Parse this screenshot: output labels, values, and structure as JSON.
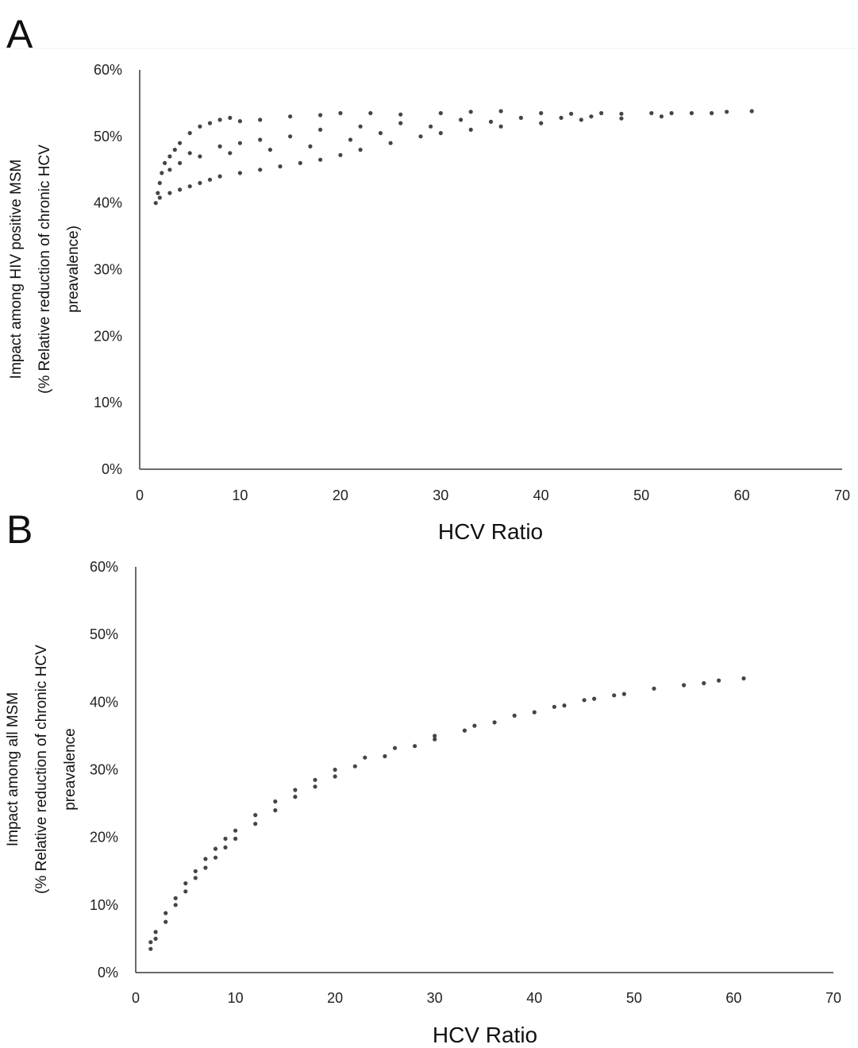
{
  "chart_data": [
    {
      "panel": "A",
      "type": "scatter",
      "title": "",
      "xlabel": "HCV Ratio",
      "ylabel_lines": [
        "Impact among HIV positive MSM",
        "(% Relative reduction of chronic HCV",
        "preavalence)"
      ],
      "xlim": [
        0,
        70
      ],
      "ylim": [
        0,
        60
      ],
      "x_ticks": [
        0,
        10,
        20,
        30,
        40,
        50,
        60,
        70
      ],
      "x_tick_labels": [
        "0",
        "10",
        "20",
        "30",
        "40",
        "50",
        "60",
        "70"
      ],
      "y_ticks": [
        0,
        10,
        20,
        30,
        40,
        50,
        60
      ],
      "y_tick_labels": [
        "0%",
        "10%",
        "20%",
        "30%",
        "40%",
        "50%",
        "60%"
      ],
      "grid": false,
      "point_color": "#454545",
      "series": [
        {
          "points": [
            [
              1.6,
              40.0
            ],
            [
              1.8,
              41.5
            ],
            [
              2.0,
              43.0
            ],
            [
              2.2,
              44.5
            ],
            [
              2.5,
              46.0
            ],
            [
              3.0,
              47.0
            ],
            [
              3.5,
              48.0
            ],
            [
              4.0,
              49.0
            ],
            [
              5.0,
              50.5
            ],
            [
              6.0,
              51.5
            ],
            [
              7.0,
              52.0
            ],
            [
              8.0,
              52.5
            ],
            [
              9.0,
              52.8
            ],
            [
              10.0,
              52.3
            ],
            [
              12.0,
              52.5
            ],
            [
              15.0,
              53.0
            ],
            [
              18.0,
              53.2
            ],
            [
              20.0,
              53.5
            ],
            [
              23.0,
              53.5
            ],
            [
              26.0,
              53.3
            ],
            [
              30.0,
              53.5
            ],
            [
              33.0,
              53.7
            ],
            [
              36.0,
              53.8
            ],
            [
              40.0,
              53.5
            ],
            [
              43.0,
              53.4
            ],
            [
              46.0,
              53.5
            ],
            [
              48.0,
              53.4
            ],
            [
              51.0,
              53.5
            ],
            [
              53.0,
              53.5
            ],
            [
              55.0,
              53.5
            ],
            [
              57.0,
              53.5
            ],
            [
              58.5,
              53.7
            ],
            [
              61.0,
              53.8
            ],
            [
              2.0,
              40.8
            ],
            [
              3.0,
              41.5
            ],
            [
              4.0,
              42.0
            ],
            [
              5.0,
              42.5
            ],
            [
              6.0,
              43.0
            ],
            [
              7.0,
              43.5
            ],
            [
              8.0,
              44.0
            ],
            [
              10.0,
              44.5
            ],
            [
              12.0,
              45.0
            ],
            [
              14.0,
              45.5
            ],
            [
              16.0,
              46.0
            ],
            [
              18.0,
              46.5
            ],
            [
              20.0,
              47.2
            ],
            [
              22.0,
              48.0
            ],
            [
              25.0,
              49.0
            ],
            [
              28.0,
              50.0
            ],
            [
              30.0,
              50.5
            ],
            [
              33.0,
              51.0
            ],
            [
              36.0,
              51.5
            ],
            [
              40.0,
              52.0
            ],
            [
              44.0,
              52.5
            ],
            [
              48.0,
              52.7
            ],
            [
              52.0,
              53.0
            ],
            [
              5.0,
              47.5
            ],
            [
              8.0,
              48.5
            ],
            [
              10.0,
              49.0
            ],
            [
              12.0,
              49.5
            ],
            [
              15.0,
              50.0
            ],
            [
              18.0,
              51.0
            ],
            [
              22.0,
              51.5
            ],
            [
              26.0,
              52.0
            ],
            [
              32.0,
              52.5
            ],
            [
              38.0,
              52.8
            ],
            [
              45.0,
              53.0
            ],
            [
              3.0,
              45.0
            ],
            [
              4.0,
              46.0
            ],
            [
              6.0,
              47.0
            ],
            [
              9.0,
              47.5
            ],
            [
              13.0,
              48.0
            ],
            [
              17.0,
              48.5
            ],
            [
              21.0,
              49.5
            ],
            [
              24.0,
              50.5
            ],
            [
              29.0,
              51.5
            ],
            [
              35.0,
              52.2
            ],
            [
              42.0,
              52.8
            ]
          ]
        }
      ]
    },
    {
      "panel": "B",
      "type": "scatter",
      "title": "",
      "xlabel": "HCV Ratio",
      "ylabel_lines": [
        "Impact among all MSM",
        "(% Relative reduction of chronic HCV",
        "preavalence"
      ],
      "xlim": [
        0,
        70
      ],
      "ylim": [
        0,
        60
      ],
      "x_ticks": [
        0,
        10,
        20,
        30,
        40,
        50,
        60,
        70
      ],
      "x_tick_labels": [
        "0",
        "10",
        "20",
        "30",
        "40",
        "50",
        "60",
        "70"
      ],
      "y_ticks": [
        0,
        10,
        20,
        30,
        40,
        50,
        60
      ],
      "y_tick_labels": [
        "0%",
        "10%",
        "20%",
        "30%",
        "40%",
        "50%",
        "60%"
      ],
      "grid": false,
      "point_color": "#454545",
      "series": [
        {
          "points": [
            [
              1.5,
              3.5
            ],
            [
              2.0,
              5.0
            ],
            [
              3.0,
              7.5
            ],
            [
              4.0,
              10.0
            ],
            [
              5.0,
              12.0
            ],
            [
              6.0,
              14.0
            ],
            [
              7.0,
              15.5
            ],
            [
              8.0,
              17.0
            ],
            [
              9.0,
              18.5
            ],
            [
              10.0,
              19.8
            ],
            [
              12.0,
              22.0
            ],
            [
              14.0,
              24.0
            ],
            [
              16.0,
              26.0
            ],
            [
              18.0,
              27.5
            ],
            [
              20.0,
              29.0
            ],
            [
              22.0,
              30.5
            ],
            [
              25.0,
              32.0
            ],
            [
              28.0,
              33.5
            ],
            [
              30.0,
              34.5
            ],
            [
              33.0,
              35.8
            ],
            [
              36.0,
              37.0
            ],
            [
              40.0,
              38.5
            ],
            [
              43.0,
              39.5
            ],
            [
              46.0,
              40.5
            ],
            [
              49.0,
              41.2
            ],
            [
              52.0,
              42.0
            ],
            [
              55.0,
              42.5
            ],
            [
              57.0,
              42.8
            ],
            [
              58.5,
              43.2
            ],
            [
              61.0,
              43.5
            ],
            [
              1.5,
              4.5
            ],
            [
              2.0,
              6.0
            ],
            [
              3.0,
              8.8
            ],
            [
              4.0,
              11.0
            ],
            [
              5.0,
              13.2
            ],
            [
              6.0,
              15.0
            ],
            [
              7.0,
              16.8
            ],
            [
              8.0,
              18.3
            ],
            [
              9.0,
              19.8
            ],
            [
              10.0,
              21.0
            ],
            [
              12.0,
              23.3
            ],
            [
              14.0,
              25.3
            ],
            [
              16.0,
              27.0
            ],
            [
              18.0,
              28.5
            ],
            [
              20.0,
              30.0
            ],
            [
              23.0,
              31.8
            ],
            [
              26.0,
              33.2
            ],
            [
              30.0,
              35.0
            ],
            [
              34.0,
              36.5
            ],
            [
              38.0,
              38.0
            ],
            [
              42.0,
              39.3
            ],
            [
              45.0,
              40.3
            ],
            [
              48.0,
              41.0
            ]
          ]
        }
      ]
    }
  ]
}
